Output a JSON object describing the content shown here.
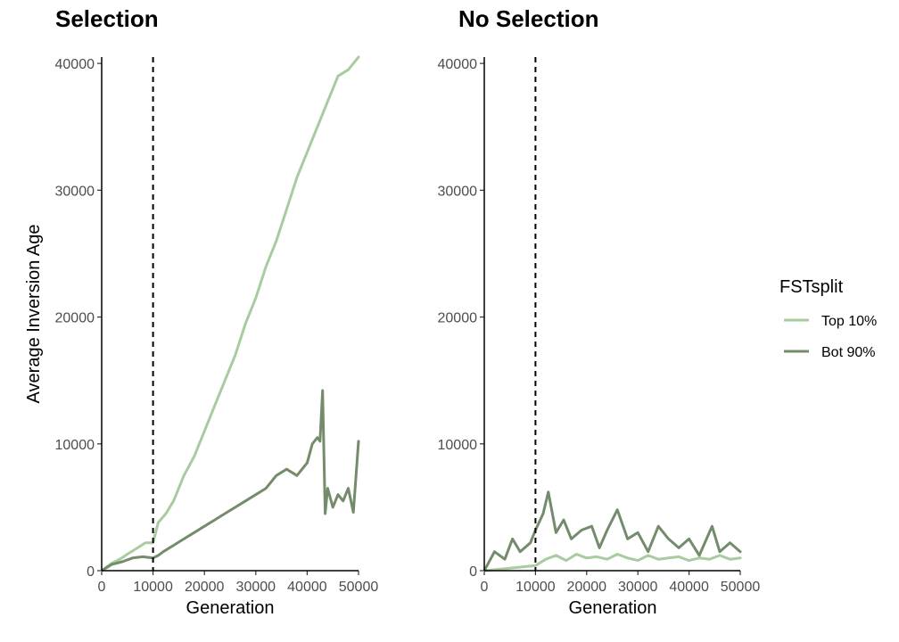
{
  "legend": {
    "title": "FSTsplit",
    "entries": [
      {
        "label": "Top 10%",
        "color": "#a8cba0"
      },
      {
        "label": "Bot 90%",
        "color": "#748c6c"
      }
    ]
  },
  "chart_data": [
    {
      "type": "line",
      "title": "Selection",
      "xlabel": "Generation",
      "ylabel": "Average Inversion Age",
      "xlim": [
        0,
        50000
      ],
      "ylim": [
        0,
        40500
      ],
      "xticks": [
        0,
        10000,
        20000,
        30000,
        40000,
        50000
      ],
      "yticks": [
        0,
        10000,
        20000,
        30000,
        40000
      ],
      "vline": 10000,
      "grid": false,
      "series": [
        {
          "name": "Top 10%",
          "color": "#a8cba0",
          "x": [
            0,
            2000,
            3500,
            5000,
            7000,
            8500,
            10000,
            11000,
            12500,
            14000,
            16000,
            18000,
            20000,
            22000,
            24000,
            26000,
            28000,
            30000,
            32000,
            34000,
            36000,
            38000,
            40000,
            42000,
            44000,
            46000,
            48000,
            50000
          ],
          "y": [
            0,
            600,
            900,
            1300,
            1800,
            2200,
            2200,
            3800,
            4500,
            5500,
            7500,
            9000,
            11000,
            13000,
            15000,
            17000,
            19500,
            21500,
            24000,
            26000,
            28500,
            31000,
            33000,
            35000,
            37000,
            39000,
            39500,
            40500
          ]
        },
        {
          "name": "Bot 90%",
          "color": "#748c6c",
          "x": [
            0,
            2000,
            4000,
            6000,
            8000,
            10000,
            11000,
            12000,
            14000,
            16000,
            18000,
            20000,
            22000,
            24000,
            26000,
            28000,
            30000,
            32000,
            34000,
            36000,
            38000,
            40000,
            41000,
            42000,
            42500,
            43000,
            43500,
            44000,
            45000,
            46000,
            47000,
            48000,
            49000,
            50000
          ],
          "y": [
            0,
            500,
            700,
            1000,
            1100,
            1000,
            1200,
            1500,
            2000,
            2500,
            3000,
            3500,
            4000,
            4500,
            5000,
            5500,
            6000,
            6500,
            7500,
            8000,
            7500,
            8500,
            10000,
            10500,
            10200,
            14200,
            4500,
            6500,
            5000,
            6000,
            5500,
            6500,
            4600,
            10200
          ]
        }
      ]
    },
    {
      "type": "line",
      "title": "No Selection",
      "xlabel": "Generation",
      "ylabel": "",
      "xlim": [
        0,
        50000
      ],
      "ylim": [
        0,
        40500
      ],
      "xticks": [
        0,
        10000,
        20000,
        30000,
        40000,
        50000
      ],
      "yticks": [
        0,
        10000,
        20000,
        30000,
        40000
      ],
      "vline": 10000,
      "grid": false,
      "series": [
        {
          "name": "Top 10%",
          "color": "#a8cba0",
          "x": [
            0,
            5000,
            10000,
            12000,
            14000,
            16000,
            18000,
            20000,
            22000,
            24000,
            26000,
            28000,
            30000,
            32000,
            34000,
            36000,
            38000,
            40000,
            42000,
            44000,
            46000,
            48000,
            50000
          ],
          "y": [
            0,
            200,
            400,
            900,
            1200,
            800,
            1300,
            1000,
            1100,
            900,
            1300,
            1000,
            800,
            1200,
            900,
            1000,
            1100,
            800,
            1000,
            900,
            1200,
            900,
            1000
          ]
        },
        {
          "name": "Bot 90%",
          "color": "#748c6c",
          "x": [
            0,
            2000,
            4000,
            5500,
            7000,
            9000,
            10000,
            11500,
            12500,
            14000,
            15500,
            17000,
            19000,
            21000,
            22500,
            24000,
            26000,
            28000,
            30000,
            32000,
            34000,
            36000,
            38000,
            40000,
            42000,
            44500,
            46000,
            48000,
            50000
          ],
          "y": [
            0,
            1500,
            900,
            2500,
            1500,
            2200,
            3200,
            4500,
            6200,
            3000,
            4000,
            2500,
            3200,
            3500,
            1800,
            3200,
            4800,
            2500,
            3000,
            1500,
            3500,
            2500,
            1800,
            2500,
            1200,
            3500,
            1500,
            2200,
            1500
          ]
        }
      ]
    }
  ]
}
